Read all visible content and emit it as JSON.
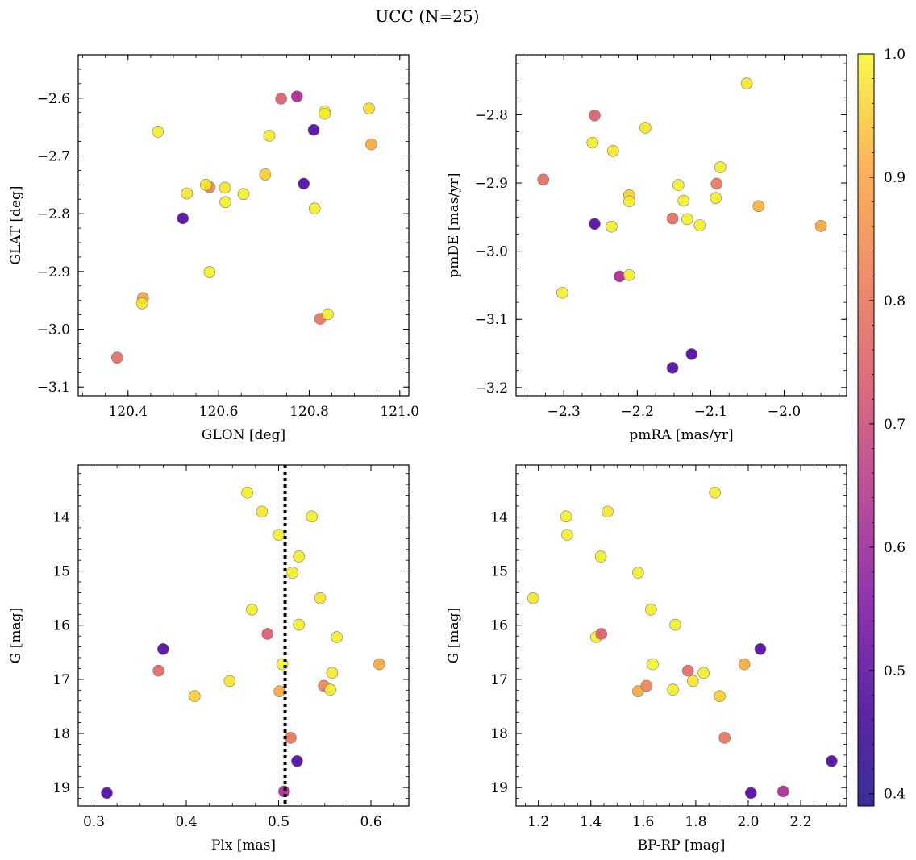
{
  "figure": {
    "title": "UCC (N=25)"
  },
  "colorbar": {
    "ticks": [
      0.4,
      0.5,
      0.6,
      0.7,
      0.8,
      0.9,
      1.0
    ],
    "tick_labels": [
      "0.4",
      "0.5",
      "0.6",
      "0.7",
      "0.8",
      "0.9",
      "1.0"
    ],
    "range": [
      0.39,
      1.0
    ],
    "colormap": "plasma"
  },
  "chart_data": [
    {
      "type": "scatter",
      "xlabel": "GLON [deg]",
      "ylabel": "GLAT [deg]",
      "xlim": [
        120.29,
        121.02
      ],
      "ylim": [
        -3.115,
        -2.525
      ],
      "xticks": [
        120.4,
        120.6,
        120.8,
        121.0
      ],
      "xtick_labels": [
        "120.4",
        "120.6",
        "120.8",
        "121.0"
      ],
      "yticks": [
        -3.1,
        -3.0,
        -2.9,
        -2.8,
        -2.7,
        -2.6
      ],
      "ytick_labels": [
        "−3.1",
        "−3.0",
        "−2.9",
        "−2.8",
        "−2.7",
        "−2.6"
      ],
      "y_inverted": false,
      "points": [
        {
          "x": 120.376,
          "y": -3.049,
          "c": 0.73
        },
        {
          "x": 120.433,
          "y": -2.946,
          "c": 0.85
        },
        {
          "x": 120.431,
          "y": -2.955,
          "c": 0.97
        },
        {
          "x": 120.466,
          "y": -2.658,
          "c": 0.98
        },
        {
          "x": 120.521,
          "y": -2.808,
          "c": 0.4
        },
        {
          "x": 120.53,
          "y": -2.765,
          "c": 0.97
        },
        {
          "x": 120.58,
          "y": -2.754,
          "c": 0.78
        },
        {
          "x": 120.572,
          "y": -2.75,
          "c": 0.97
        },
        {
          "x": 120.58,
          "y": -2.901,
          "c": 0.98
        },
        {
          "x": 120.614,
          "y": -2.755,
          "c": 0.97
        },
        {
          "x": 120.615,
          "y": -2.78,
          "c": 0.98
        },
        {
          "x": 120.655,
          "y": -2.766,
          "c": 0.98
        },
        {
          "x": 120.703,
          "y": -2.732,
          "c": 0.93
        },
        {
          "x": 120.712,
          "y": -2.665,
          "c": 0.98
        },
        {
          "x": 120.738,
          "y": -2.601,
          "c": 0.7
        },
        {
          "x": 120.773,
          "y": -2.597,
          "c": 0.57
        },
        {
          "x": 120.788,
          "y": -2.748,
          "c": 0.4
        },
        {
          "x": 120.81,
          "y": -2.655,
          "c": 0.4
        },
        {
          "x": 120.812,
          "y": -2.791,
          "c": 0.98
        },
        {
          "x": 120.824,
          "y": -2.982,
          "c": 0.75
        },
        {
          "x": 120.834,
          "y": -2.623,
          "c": 1.0
        },
        {
          "x": 120.834,
          "y": -2.627,
          "c": 0.98
        },
        {
          "x": 120.841,
          "y": -2.974,
          "c": 0.98
        },
        {
          "x": 120.932,
          "y": -2.618,
          "c": 0.95
        },
        {
          "x": 120.937,
          "y": -2.68,
          "c": 0.86
        }
      ]
    },
    {
      "type": "scatter",
      "xlabel": "pmRA [mas/yr]",
      "ylabel": "pmDE [mas/yr]",
      "xlim": [
        -2.365,
        -1.915
      ],
      "ylim": [
        -3.212,
        -2.712
      ],
      "xticks": [
        -2.3,
        -2.2,
        -2.1,
        -2.0
      ],
      "xtick_labels": [
        "−2.3",
        "−2.2",
        "−2.1",
        "−2.0"
      ],
      "yticks": [
        -3.2,
        -3.1,
        -3.0,
        -2.9,
        -2.8
      ],
      "ytick_labels": [
        "−3.2",
        "−3.1",
        "−3.0",
        "−2.9",
        "−2.8"
      ],
      "y_inverted": false,
      "points": [
        {
          "x": -2.328,
          "y": -2.895,
          "c": 0.73
        },
        {
          "x": -2.302,
          "y": -3.061,
          "c": 0.98
        },
        {
          "x": -2.261,
          "y": -2.841,
          "c": 0.98
        },
        {
          "x": -2.258,
          "y": -2.801,
          "c": 0.7
        },
        {
          "x": -2.258,
          "y": -2.96,
          "c": 0.4
        },
        {
          "x": -2.233,
          "y": -2.853,
          "c": 0.97
        },
        {
          "x": -2.235,
          "y": -2.964,
          "c": 0.98
        },
        {
          "x": -2.224,
          "y": -3.037,
          "c": 0.57
        },
        {
          "x": -2.211,
          "y": -2.918,
          "c": 0.93
        },
        {
          "x": -2.211,
          "y": -2.927,
          "c": 0.98
        },
        {
          "x": -2.211,
          "y": -3.035,
          "c": 0.98
        },
        {
          "x": -2.189,
          "y": -2.819,
          "c": 0.97
        },
        {
          "x": -2.152,
          "y": -3.171,
          "c": 0.4
        },
        {
          "x": -2.152,
          "y": -2.952,
          "c": 0.73
        },
        {
          "x": -2.144,
          "y": -2.903,
          "c": 0.98
        },
        {
          "x": -2.137,
          "y": -2.926,
          "c": 0.98
        },
        {
          "x": -2.132,
          "y": -2.953,
          "c": 0.98
        },
        {
          "x": -2.126,
          "y": -3.151,
          "c": 0.4
        },
        {
          "x": -2.115,
          "y": -2.962,
          "c": 0.98
        },
        {
          "x": -2.093,
          "y": -2.922,
          "c": 0.98
        },
        {
          "x": -2.092,
          "y": -2.901,
          "c": 0.75
        },
        {
          "x": -2.087,
          "y": -2.877,
          "c": 0.98
        },
        {
          "x": -2.051,
          "y": -2.754,
          "c": 0.97
        },
        {
          "x": -2.035,
          "y": -2.934,
          "c": 0.88
        },
        {
          "x": -1.95,
          "y": -2.963,
          "c": 0.86
        }
      ]
    },
    {
      "type": "scatter",
      "xlabel": "Plx [mas]",
      "ylabel": "G [mag]",
      "xlim": [
        0.283,
        0.641
      ],
      "ylim": [
        19.34,
        13.04
      ],
      "xticks": [
        0.3,
        0.4,
        0.5,
        0.6
      ],
      "xtick_labels": [
        "0.3",
        "0.4",
        "0.5",
        "0.6"
      ],
      "yticks": [
        14,
        15,
        16,
        17,
        18,
        19
      ],
      "ytick_labels": [
        "14",
        "15",
        "16",
        "17",
        "18",
        "19"
      ],
      "y_inverted": true,
      "vline": {
        "x": 0.507,
        "style": "dotted"
      },
      "points": [
        {
          "x": 0.314,
          "y": 19.1,
          "c": 0.4
        },
        {
          "x": 0.37,
          "y": 16.84,
          "c": 0.73
        },
        {
          "x": 0.375,
          "y": 16.44,
          "c": 0.4
        },
        {
          "x": 0.409,
          "y": 17.31,
          "c": 0.93
        },
        {
          "x": 0.447,
          "y": 17.03,
          "c": 0.97
        },
        {
          "x": 0.466,
          "y": 13.55,
          "c": 0.98
        },
        {
          "x": 0.471,
          "y": 15.71,
          "c": 0.98
        },
        {
          "x": 0.482,
          "y": 13.9,
          "c": 0.97
        },
        {
          "x": 0.488,
          "y": 16.16,
          "c": 0.7
        },
        {
          "x": 0.5,
          "y": 14.33,
          "c": 0.98
        },
        {
          "x": 0.501,
          "y": 17.22,
          "c": 0.86
        },
        {
          "x": 0.504,
          "y": 16.72,
          "c": 1.0
        },
        {
          "x": 0.506,
          "y": 19.07,
          "c": 0.57
        },
        {
          "x": 0.513,
          "y": 18.08,
          "c": 0.75
        },
        {
          "x": 0.515,
          "y": 15.03,
          "c": 0.98
        },
        {
          "x": 0.52,
          "y": 18.51,
          "c": 0.4
        },
        {
          "x": 0.522,
          "y": 14.73,
          "c": 0.98
        },
        {
          "x": 0.522,
          "y": 15.99,
          "c": 0.98
        },
        {
          "x": 0.536,
          "y": 13.99,
          "c": 0.98
        },
        {
          "x": 0.545,
          "y": 15.5,
          "c": 0.97
        },
        {
          "x": 0.549,
          "y": 17.12,
          "c": 0.78
        },
        {
          "x": 0.556,
          "y": 17.19,
          "c": 0.98
        },
        {
          "x": 0.558,
          "y": 16.88,
          "c": 0.98
        },
        {
          "x": 0.563,
          "y": 16.22,
          "c": 0.98
        },
        {
          "x": 0.609,
          "y": 16.72,
          "c": 0.86
        }
      ]
    },
    {
      "type": "scatter",
      "xlabel": "BP-RP [mag]",
      "ylabel": "G [mag]",
      "xlim": [
        1.115,
        2.375
      ],
      "ylim": [
        19.34,
        13.04
      ],
      "xticks": [
        1.2,
        1.4,
        1.6,
        1.8,
        2.0,
        2.2
      ],
      "xtick_labels": [
        "1.2",
        "1.4",
        "1.6",
        "1.8",
        "2.0",
        "2.2"
      ],
      "yticks": [
        14,
        15,
        16,
        17,
        18,
        19
      ],
      "ytick_labels": [
        "14",
        "15",
        "16",
        "17",
        "18",
        "19"
      ],
      "y_inverted": true,
      "points": [
        {
          "x": 1.18,
          "y": 15.5,
          "c": 0.97
        },
        {
          "x": 1.306,
          "y": 13.99,
          "c": 0.98
        },
        {
          "x": 1.31,
          "y": 14.33,
          "c": 0.98
        },
        {
          "x": 1.42,
          "y": 16.22,
          "c": 0.98
        },
        {
          "x": 1.438,
          "y": 14.73,
          "c": 0.98
        },
        {
          "x": 1.44,
          "y": 16.16,
          "c": 0.7
        },
        {
          "x": 1.464,
          "y": 13.9,
          "c": 0.97
        },
        {
          "x": 1.58,
          "y": 15.03,
          "c": 0.98
        },
        {
          "x": 1.58,
          "y": 17.22,
          "c": 0.86
        },
        {
          "x": 1.612,
          "y": 17.12,
          "c": 0.78
        },
        {
          "x": 1.629,
          "y": 15.71,
          "c": 0.98
        },
        {
          "x": 1.636,
          "y": 16.72,
          "c": 1.0
        },
        {
          "x": 1.713,
          "y": 17.19,
          "c": 0.98
        },
        {
          "x": 1.722,
          "y": 15.99,
          "c": 0.98
        },
        {
          "x": 1.77,
          "y": 16.84,
          "c": 0.73
        },
        {
          "x": 1.789,
          "y": 17.03,
          "c": 0.97
        },
        {
          "x": 1.83,
          "y": 16.88,
          "c": 0.98
        },
        {
          "x": 1.873,
          "y": 13.55,
          "c": 0.98
        },
        {
          "x": 1.891,
          "y": 17.31,
          "c": 0.93
        },
        {
          "x": 1.91,
          "y": 18.08,
          "c": 0.75
        },
        {
          "x": 1.985,
          "y": 16.72,
          "c": 0.86
        },
        {
          "x": 2.01,
          "y": 19.1,
          "c": 0.4
        },
        {
          "x": 2.046,
          "y": 16.44,
          "c": 0.4
        },
        {
          "x": 2.133,
          "y": 19.07,
          "c": 0.57
        },
        {
          "x": 2.318,
          "y": 18.51,
          "c": 0.4
        }
      ]
    }
  ]
}
